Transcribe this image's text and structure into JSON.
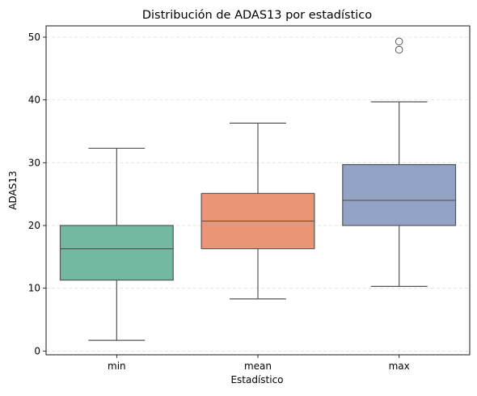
{
  "chart_data": {
    "type": "box",
    "title": "Distribución de ADAS13 por estadístico",
    "xlabel": "Estadístico",
    "ylabel": "ADAS13",
    "categories": [
      "min",
      "mean",
      "max"
    ],
    "ylim": [
      -0.6,
      51.8
    ],
    "yticks": [
      0,
      10,
      20,
      30,
      40,
      50
    ],
    "ytick_labels": [
      "0",
      "10",
      "20",
      "30",
      "40",
      "50"
    ],
    "grid": "y dashed",
    "boxes": [
      {
        "category": "min",
        "whisker_low": 1.7,
        "q1": 11.3,
        "median": 16.3,
        "q3": 20.0,
        "whisker_high": 32.3,
        "outliers": [],
        "color": "#73b8a1"
      },
      {
        "category": "mean",
        "whisker_low": 8.3,
        "q1": 16.3,
        "median": 20.7,
        "q3": 25.1,
        "whisker_high": 36.3,
        "outliers": [],
        "color": "#ea9676"
      },
      {
        "category": "max",
        "whisker_low": 10.3,
        "q1": 20.0,
        "median": 24.0,
        "q3": 29.7,
        "whisker_high": 39.7,
        "outliers": [
          48.0,
          49.3
        ],
        "color": "#93a3c6"
      }
    ],
    "line_color": "#555555"
  }
}
